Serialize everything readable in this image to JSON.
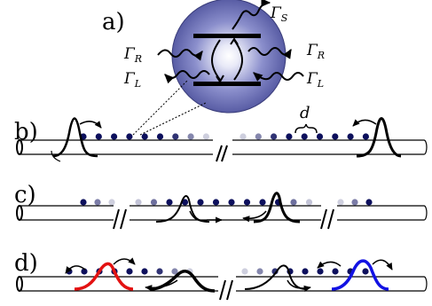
{
  "panels": {
    "a": {
      "label": "a)"
    },
    "b": {
      "label": "b)",
      "spacing_label": "d"
    },
    "c": {
      "label": "c)"
    },
    "d": {
      "label": "d)"
    }
  },
  "rates": {
    "gamma": "Γ",
    "s": "S",
    "r": "R",
    "l": "L"
  },
  "colors": {
    "atom_blue": "#0c0f5c",
    "sphere": "#6a6fb8",
    "sphere_edge": "#3a3d7a",
    "wave_black": "#000000",
    "wave_red": "#e31212",
    "wave_blue": "#1212e3"
  }
}
